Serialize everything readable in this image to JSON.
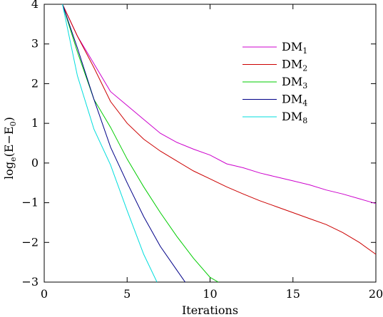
{
  "chart_data": {
    "type": "line",
    "xlabel": "Iterations",
    "ylabel": "log",
    "ylabel_sub": "e",
    "ylabel_expr": "(E−E",
    "ylabel_expr_sub": "0",
    "ylabel_close": ")",
    "xlim": [
      0,
      20
    ],
    "ylim": [
      -3,
      4
    ],
    "x_ticks": [
      0,
      5,
      10,
      15,
      20
    ],
    "y_ticks": [
      -3,
      -2,
      -1,
      0,
      1,
      2,
      3,
      4
    ],
    "x_tick_labels": [
      "0",
      "5",
      "10",
      "15",
      "20"
    ],
    "y_tick_labels": [
      "−3",
      "−2",
      "−1",
      "0",
      "1",
      "2",
      "3",
      "4"
    ],
    "grid": false,
    "legend_position": "top-right",
    "series": [
      {
        "name": "DM",
        "sub": "1",
        "color": "#cc00cc",
        "x": [
          1.1,
          2,
          3,
          4,
          5,
          6,
          7,
          8,
          9,
          10,
          11,
          12,
          13,
          14,
          15,
          16,
          17,
          18,
          19,
          20
        ],
        "y": [
          4.0,
          3.2,
          2.5,
          1.8,
          1.45,
          1.1,
          0.75,
          0.52,
          0.35,
          0.2,
          -0.02,
          -0.12,
          -0.25,
          -0.35,
          -0.45,
          -0.55,
          -0.68,
          -0.78,
          -0.9,
          -1.02
        ]
      },
      {
        "name": "DM",
        "sub": "2",
        "color": "#cc0000",
        "x": [
          1.1,
          2,
          3,
          4,
          5,
          6,
          7,
          8,
          9,
          10,
          11,
          12,
          13,
          14,
          15,
          16,
          17,
          18,
          19,
          20
        ],
        "y": [
          4.0,
          3.2,
          2.4,
          1.55,
          1.0,
          0.6,
          0.3,
          0.05,
          -0.2,
          -0.4,
          -0.6,
          -0.78,
          -0.95,
          -1.1,
          -1.25,
          -1.4,
          -1.55,
          -1.75,
          -2.0,
          -2.3
        ]
      },
      {
        "name": "DM",
        "sub": "3",
        "color": "#00cc00",
        "x": [
          1.1,
          2,
          3,
          4,
          5,
          6,
          7,
          8,
          9,
          10,
          10.5
        ],
        "y": [
          4.0,
          2.8,
          1.6,
          0.9,
          0.1,
          -0.6,
          -1.25,
          -1.85,
          -2.4,
          -2.88,
          -3.0
        ]
      },
      {
        "name": "DM",
        "sub": "4",
        "color": "#000088",
        "x": [
          1.1,
          2,
          3,
          4,
          5,
          6,
          7,
          8,
          8.5
        ],
        "y": [
          4.0,
          2.9,
          1.6,
          0.4,
          -0.5,
          -1.35,
          -2.1,
          -2.7,
          -3.0
        ]
      },
      {
        "name": "DM",
        "sub": "8",
        "color": "#00dddd",
        "x": [
          1.1,
          2,
          3,
          4,
          5,
          6,
          6.8
        ],
        "y": [
          4.0,
          2.2,
          0.85,
          -0.05,
          -1.2,
          -2.3,
          -3.0
        ]
      }
    ]
  }
}
